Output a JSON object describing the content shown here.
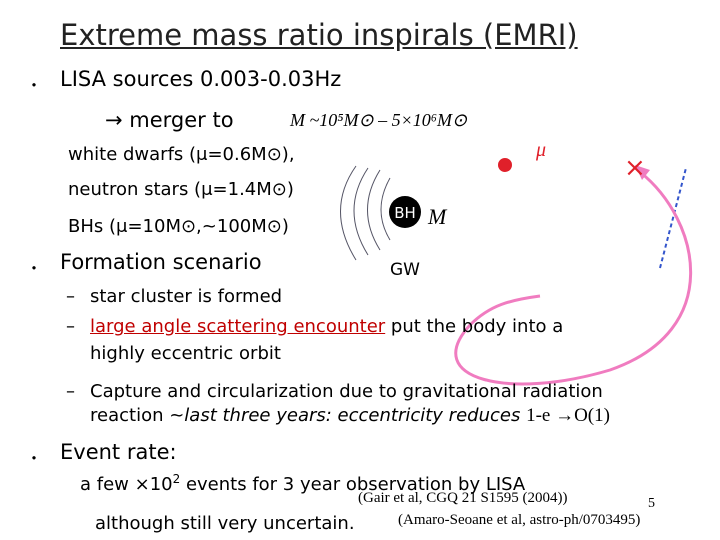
{
  "title": "Extreme mass ratio inspirals (EMRI)",
  "bullets": {
    "sources": {
      "text": "LISA sources 0.003-0.03Hz",
      "merger": "→ merger to",
      "mass_range": "M ~10⁵M⊙ – 5×10⁶M⊙",
      "white_dwarfs": "white dwarfs (μ=0.6M⊙),",
      "neutron_stars": "neutron stars (μ=1.4M⊙)",
      "bhs": "BHs (μ=10M⊙,~100M⊙)"
    },
    "formation": {
      "text": "Formation scenario",
      "items": [
        {
          "text": "star cluster is formed"
        },
        {
          "highlight": "large angle scattering encounter",
          "text": " put the body into a",
          "line2": "highly eccentric orbit"
        },
        {
          "text": "Capture and circularization due to gravitational radiation",
          "line2_a": "reaction  ~",
          "line2_b": "last three years: eccentricity reduces ",
          "line2_c": "1-e →O(1)"
        }
      ]
    },
    "event_rate": {
      "text": "Event rate:",
      "line1_a": "a few ×10",
      "line1_sup": "2",
      "line1_b": " events for 3 year observation by LISA",
      "citation1": "(Gair et al, CGQ 21 S1595 (2004))",
      "line2": "although still very uncertain.",
      "citation2": "(Amaro-Seoane et al, astro-ph/0703495)"
    }
  },
  "diagram": {
    "mu": "μ",
    "bh": "BH",
    "m": "M",
    "gw": "GW",
    "cross": "×"
  },
  "page_number": "5"
}
